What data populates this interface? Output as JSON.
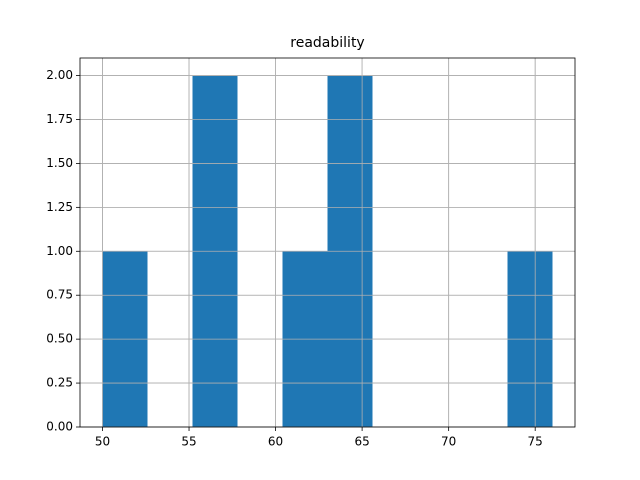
{
  "chart_data": {
    "type": "histogram",
    "title": "readability",
    "bins": [
      50,
      52.6,
      55.2,
      57.8,
      60.4,
      63,
      65.6,
      68.2,
      70.8,
      73.4,
      76
    ],
    "values": [
      1,
      0,
      2,
      0,
      1,
      2,
      0,
      0,
      0,
      1
    ],
    "color": "#1f77b4",
    "xlim": [
      48.7,
      77.3
    ],
    "xticks": [
      50,
      55,
      60,
      65,
      70,
      75
    ],
    "ylim": [
      0,
      2.1
    ],
    "yticks": [
      {
        "value": 0,
        "label": "0.00"
      },
      {
        "value": 0.25,
        "label": "0.25"
      },
      {
        "value": 0.5,
        "label": "0.50"
      },
      {
        "value": 0.75,
        "label": "0.75"
      },
      {
        "value": 1,
        "label": "1.00"
      },
      {
        "value": 1.25,
        "label": "1.25"
      },
      {
        "value": 1.5,
        "label": "1.50"
      },
      {
        "value": 1.75,
        "label": "1.75"
      },
      {
        "value": 2,
        "label": "2.00"
      }
    ],
    "grid": true
  }
}
